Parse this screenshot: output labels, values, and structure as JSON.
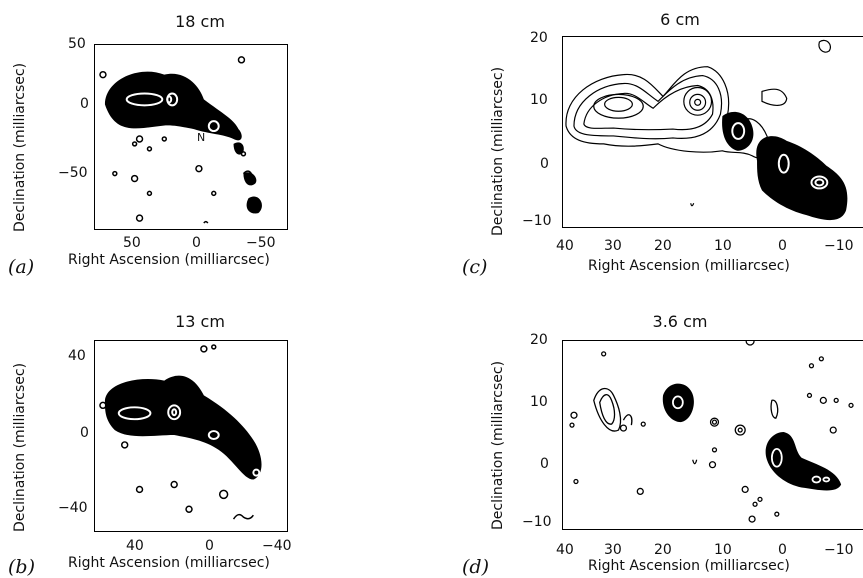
{
  "figure": {
    "panels": [
      {
        "id": "a",
        "label": "(a)",
        "title": "18 cm",
        "xlabel": "Right Ascension (milliarcsec)",
        "ylabel": "Declination (milliarcsec)",
        "xticks": [
          "50",
          "0",
          "−50"
        ],
        "yticks": [
          "50",
          "0",
          "−50"
        ],
        "annotation": "N"
      },
      {
        "id": "b",
        "label": "(b)",
        "title": "13 cm",
        "xlabel": "Right Ascension (milliarcsec)",
        "ylabel": "Declination (milliarcsec)",
        "xticks": [
          "40",
          "0",
          "−40"
        ],
        "yticks": [
          "40",
          "0",
          "−40"
        ]
      },
      {
        "id": "c",
        "label": "(c)",
        "title": "6 cm",
        "xlabel": "Right Ascension (milliarcsec)",
        "ylabel": "Declination (milliarcsec)",
        "xticks": [
          "40",
          "30",
          "20",
          "10",
          "0",
          "−10"
        ],
        "yticks": [
          "20",
          "10",
          "0",
          "−10"
        ]
      },
      {
        "id": "d",
        "label": "(d)",
        "title": "3.6 cm",
        "xlabel": "Right Ascension (milliarcsec)",
        "ylabel": "Declination (milliarcsec)",
        "xticks": [
          "40",
          "30",
          "20",
          "10",
          "0",
          "−10"
        ],
        "yticks": [
          "20",
          "10",
          "0",
          "−10"
        ]
      }
    ]
  }
}
